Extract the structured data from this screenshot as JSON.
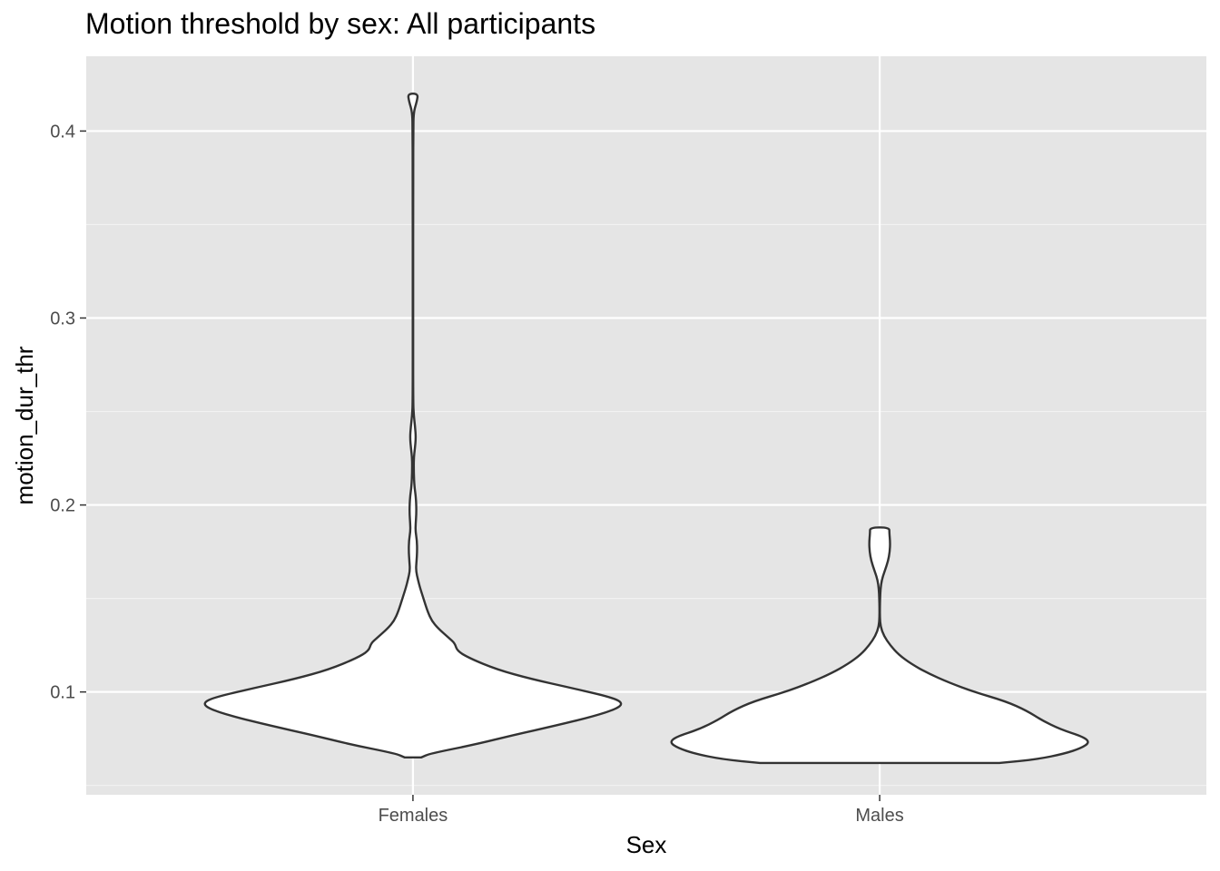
{
  "chart_data": {
    "type": "violin",
    "title": "Motion threshold by sex: All participants",
    "xlabel": "Sex",
    "ylabel": "motion_dur_thr",
    "categories": [
      "Females",
      "Males"
    ],
    "ylim": [
      0.045,
      0.44
    ],
    "y_ticks": [
      0.1,
      0.2,
      0.3,
      0.4
    ],
    "y_tick_labels": [
      "0.1",
      "0.2",
      "0.3",
      "0.4"
    ],
    "grid": true,
    "legend": "none",
    "series": [
      {
        "category": "Females",
        "min": 0.065,
        "max": 0.42,
        "mode": 0.094,
        "density_profile": [
          [
            0.065,
            0.04
          ],
          [
            0.067,
            0.08
          ],
          [
            0.072,
            0.3
          ],
          [
            0.077,
            0.48
          ],
          [
            0.082,
            0.68
          ],
          [
            0.087,
            0.86
          ],
          [
            0.091,
            0.97
          ],
          [
            0.094,
            1.0
          ],
          [
            0.097,
            0.95
          ],
          [
            0.102,
            0.76
          ],
          [
            0.107,
            0.56
          ],
          [
            0.112,
            0.4
          ],
          [
            0.118,
            0.27
          ],
          [
            0.122,
            0.21
          ],
          [
            0.126,
            0.2
          ],
          [
            0.129,
            0.17
          ],
          [
            0.134,
            0.12
          ],
          [
            0.138,
            0.09
          ],
          [
            0.143,
            0.07
          ],
          [
            0.15,
            0.05
          ],
          [
            0.156,
            0.033
          ],
          [
            0.16,
            0.024
          ],
          [
            0.165,
            0.014
          ],
          [
            0.17,
            0.017
          ],
          [
            0.175,
            0.02
          ],
          [
            0.181,
            0.019
          ],
          [
            0.186,
            0.012
          ],
          [
            0.19,
            0.013
          ],
          [
            0.195,
            0.016
          ],
          [
            0.2,
            0.016
          ],
          [
            0.205,
            0.013
          ],
          [
            0.21,
            0.007
          ],
          [
            0.217,
            0.004
          ],
          [
            0.225,
            0.004
          ],
          [
            0.23,
            0.009
          ],
          [
            0.236,
            0.014
          ],
          [
            0.242,
            0.01
          ],
          [
            0.248,
            0.004
          ],
          [
            0.255,
            0.001
          ],
          [
            0.3,
            0.001
          ],
          [
            0.38,
            0.001
          ],
          [
            0.4,
            0.002
          ],
          [
            0.41,
            0.003
          ],
          [
            0.416,
            0.019
          ],
          [
            0.42,
            0.024
          ]
        ]
      },
      {
        "category": "Males",
        "min": 0.062,
        "max": 0.188,
        "mode": 0.073,
        "density_profile": [
          [
            0.062,
            0.57
          ],
          [
            0.064,
            0.75
          ],
          [
            0.067,
            0.88
          ],
          [
            0.07,
            0.96
          ],
          [
            0.073,
            1.0
          ],
          [
            0.076,
            0.97
          ],
          [
            0.08,
            0.86
          ],
          [
            0.085,
            0.77
          ],
          [
            0.09,
            0.7
          ],
          [
            0.095,
            0.6
          ],
          [
            0.1,
            0.45
          ],
          [
            0.105,
            0.33
          ],
          [
            0.11,
            0.23
          ],
          [
            0.115,
            0.15
          ],
          [
            0.12,
            0.09
          ],
          [
            0.125,
            0.05
          ],
          [
            0.13,
            0.02
          ],
          [
            0.135,
            0.004
          ],
          [
            0.14,
            0.001
          ],
          [
            0.145,
            0.001
          ],
          [
            0.15,
            0.002
          ],
          [
            0.155,
            0.004
          ],
          [
            0.16,
            0.01
          ],
          [
            0.165,
            0.025
          ],
          [
            0.17,
            0.04
          ],
          [
            0.175,
            0.048
          ],
          [
            0.18,
            0.05
          ],
          [
            0.185,
            0.046
          ],
          [
            0.188,
            0.046
          ]
        ]
      }
    ]
  }
}
